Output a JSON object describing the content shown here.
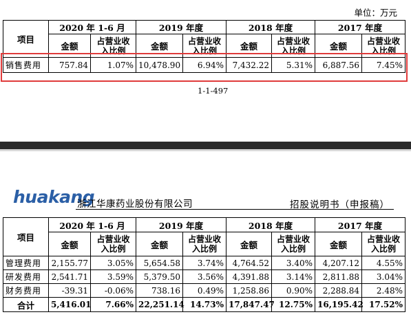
{
  "unit_label": "单位：万元",
  "page_number": "1-1-497",
  "logo_text": "huakang",
  "company_name": "浙江华康药业股份有限公司",
  "document_title": "招股说明书（申报稿）",
  "headers": {
    "item": "项目",
    "periods": [
      "2020 年 1-6 月",
      "2019 年度",
      "2018 年度",
      "2017 年度"
    ],
    "amount": "金额",
    "ratio": "占营业收入比例"
  },
  "table1": {
    "rows": [
      {
        "label": "销售费用",
        "cells": [
          "757.84",
          "1.07%",
          "10,478.90",
          "6.94%",
          "7,432.22",
          "5.31%",
          "6,887.56",
          "7.45%"
        ]
      }
    ]
  },
  "table2": {
    "rows": [
      {
        "label": "管理费用",
        "cells": [
          "2,155.77",
          "3.05%",
          "5,654.58",
          "3.74%",
          "4,764.52",
          "3.40%",
          "4,207.12",
          "4.55%"
        ]
      },
      {
        "label": "研发费用",
        "cells": [
          "2,541.71",
          "3.59%",
          "5,379.50",
          "3.56%",
          "4,391.88",
          "3.14%",
          "2,811.88",
          "3.04%"
        ]
      },
      {
        "label": "财务费用",
        "cells": [
          "-39.31",
          "-0.06%",
          "738.16",
          "0.49%",
          "1,258.86",
          "0.90%",
          "2,288.84",
          "2.48%"
        ]
      },
      {
        "label": "合计",
        "cells": [
          "5,416.01",
          "7.66%",
          "22,251.14",
          "14.73%",
          "17,847.47",
          "12.75%",
          "16,195.42",
          "17.52%"
        ]
      }
    ]
  },
  "colors": {
    "highlight_box": "#e03a3a",
    "logo": "#2b5fa6",
    "band_dark": "#2a2a2a"
  }
}
